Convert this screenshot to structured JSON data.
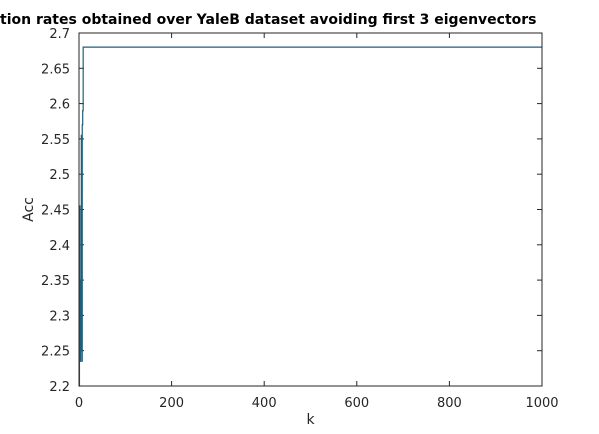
{
  "chart_data": {
    "type": "line",
    "title": "tion rates obtained over YaleB dataset avoiding first 3 eigenvectors",
    "xlabel": "k",
    "ylabel": "Acc",
    "xlim": [
      0,
      1000
    ],
    "ylim": [
      2.2,
      2.7
    ],
    "xticks": [
      0,
      200,
      400,
      600,
      800,
      1000
    ],
    "yticks": [
      2.2,
      2.25,
      2.3,
      2.35,
      2.4,
      2.45,
      2.5,
      2.55,
      2.6,
      2.65,
      2.7
    ],
    "grid": false,
    "line_color": "#1f5f7a",
    "series": [
      {
        "x": [
          0,
          1,
          1,
          2,
          2,
          3,
          3,
          4,
          4,
          5,
          5,
          6,
          6,
          7,
          7,
          8,
          8,
          9,
          9,
          1000
        ],
        "y": [
          2.2,
          2.2,
          2.455,
          2.455,
          2.235,
          2.235,
          2.35,
          2.35,
          2.25,
          2.25,
          2.555,
          2.555,
          2.235,
          2.235,
          2.57,
          2.57,
          2.59,
          2.59,
          2.68,
          2.68
        ]
      }
    ]
  }
}
